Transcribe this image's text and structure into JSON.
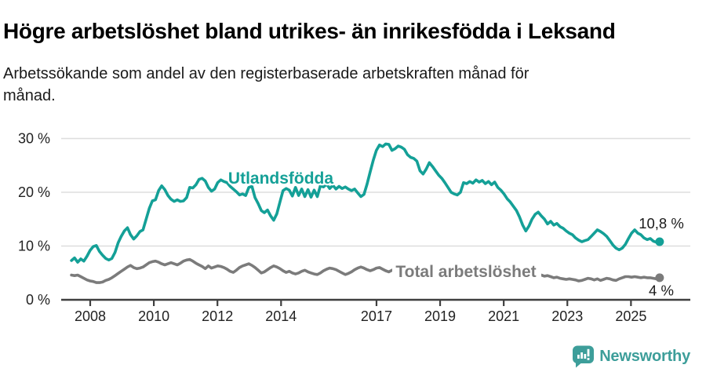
{
  "header": {
    "title": "Högre arbetslöshet bland utrikes- än inrikesfödda i Leksand",
    "subtitle_lines": [
      "Arbetssökande som andel av den registerbaserade arbetskraften månad för",
      "månad."
    ]
  },
  "footer": {
    "brand": "Newsworthy",
    "brand_color": "#3d9e9a",
    "logo_icon": "speech-bubble-bar-chart-icon"
  },
  "colors": {
    "series_foreign_born": "#14a097",
    "series_total": "#7b7b7b",
    "gridline": "#dddddd",
    "axis": "#3f3f3f",
    "tick_text": "#222222",
    "annotation_text": "#1a1a1a"
  },
  "chart_data": {
    "type": "line",
    "title": "Högre arbetslöshet bland utrikes- än inrikesfödda i Leksand",
    "subtitle": "Arbetssökande som andel av den registerbaserade arbetskraften månad för månad.",
    "unit": "%",
    "grid": true,
    "x_axis": {
      "start_year": 2007.41,
      "end_year": 2025.9,
      "tick_years": [
        2008,
        2010,
        2012,
        2014,
        2017,
        2019,
        2021,
        2023,
        2025
      ],
      "tick_labels": [
        "2008",
        "2010",
        "2012",
        "2014",
        "2017",
        "2019",
        "2021",
        "2023",
        "2025"
      ]
    },
    "y_axis": {
      "min": 0,
      "max": 30,
      "ticks": [
        {
          "value": 0,
          "label": "0 %"
        },
        {
          "value": 10,
          "label": "10 %"
        },
        {
          "value": 20,
          "label": "20 %"
        },
        {
          "value": 30,
          "label": "30 %"
        }
      ]
    },
    "series": [
      {
        "name": "Total arbetslöshet",
        "color": "#7b7b7b",
        "end_value": 4,
        "end_label": "4 %",
        "values": [
          4.6,
          4.5,
          4.6,
          4.3,
          4.0,
          3.7,
          3.5,
          3.4,
          3.2,
          3.2,
          3.3,
          3.6,
          3.8,
          4.1,
          4.5,
          4.9,
          5.3,
          5.7,
          6.1,
          6.4,
          6.0,
          5.8,
          5.9,
          6.1,
          6.5,
          6.9,
          7.1,
          7.2,
          7.0,
          6.7,
          6.5,
          6.7,
          6.9,
          6.7,
          6.5,
          6.8,
          7.2,
          7.4,
          7.5,
          7.2,
          6.8,
          6.5,
          6.2,
          5.8,
          6.3,
          5.9,
          6.1,
          6.3,
          6.2,
          6.0,
          5.7,
          5.3,
          5.1,
          5.5,
          6.0,
          6.3,
          6.5,
          6.7,
          6.4,
          6.0,
          5.5,
          5.0,
          5.2,
          5.6,
          6.0,
          6.3,
          6.1,
          5.8,
          5.4,
          5.1,
          5.3,
          5.0,
          4.8,
          5.0,
          5.3,
          5.5,
          5.2,
          5.0,
          4.8,
          4.7,
          5.0,
          5.4,
          5.7,
          5.9,
          5.8,
          5.6,
          5.3,
          5.0,
          4.7,
          4.9,
          5.2,
          5.6,
          5.9,
          6.1,
          5.9,
          5.6,
          5.4,
          5.6,
          5.9,
          6.0,
          5.7,
          5.4,
          5.2,
          5.5,
          5.8,
          6.0,
          5.8,
          5.5,
          5.3,
          5.5,
          5.8,
          5.6,
          5.3,
          5.0,
          5.2,
          5.5,
          5.7,
          5.4,
          5.1,
          4.9,
          5.1,
          5.3,
          5.5,
          5.2,
          5.0,
          5.3,
          5.6,
          5.8,
          5.5,
          5.2,
          5.0,
          5.2,
          5.5,
          5.3,
          5.0,
          4.8,
          5.0,
          5.2,
          5.4,
          5.1,
          4.9,
          4.7,
          4.9,
          5.1,
          4.8,
          4.6,
          4.4,
          4.6,
          4.8,
          4.6,
          4.5,
          4.6,
          4.4,
          4.5,
          4.3,
          4.1,
          4.2,
          4.0,
          3.9,
          3.8,
          3.9,
          3.8,
          3.7,
          3.5,
          3.6,
          3.8,
          4.0,
          3.9,
          3.7,
          3.9,
          3.6,
          3.8,
          4.0,
          3.9,
          3.7,
          3.6,
          3.9,
          4.1,
          4.3,
          4.3,
          4.2,
          4.3,
          4.2,
          4.1,
          4.2,
          4.1,
          4.1,
          4.0,
          3.9,
          4.1
        ]
      },
      {
        "name": "Utlandsfödda",
        "color": "#14a097",
        "end_value": 10.8,
        "end_label": "10,8 %",
        "values": [
          7.3,
          7.8,
          7.0,
          7.6,
          7.2,
          8.1,
          9.2,
          9.9,
          10.1,
          9.0,
          8.3,
          7.7,
          7.4,
          7.7,
          8.8,
          10.6,
          11.8,
          12.8,
          13.4,
          12.1,
          11.3,
          11.9,
          12.7,
          13.0,
          15.0,
          17.0,
          18.4,
          18.6,
          20.3,
          21.2,
          20.5,
          19.4,
          18.7,
          18.3,
          18.6,
          18.3,
          18.4,
          19.0,
          20.9,
          20.8,
          21.4,
          22.4,
          22.6,
          22.1,
          20.9,
          20.2,
          20.6,
          21.8,
          22.3,
          22.0,
          21.8,
          21.1,
          20.6,
          20.1,
          19.5,
          19.7,
          19.4,
          20.9,
          21.1,
          19.0,
          17.9,
          16.6,
          16.2,
          16.7,
          15.6,
          14.8,
          16.0,
          18.2,
          20.3,
          20.7,
          20.4,
          19.3,
          20.9,
          19.4,
          20.6,
          19.2,
          20.5,
          19.1,
          20.4,
          19.2,
          21.2,
          21.0,
          21.5,
          20.7,
          21.3,
          20.6,
          21.1,
          20.7,
          21.0,
          20.6,
          20.3,
          20.6,
          19.9,
          19.2,
          19.6,
          21.5,
          23.8,
          26.0,
          27.8,
          28.8,
          28.5,
          29.0,
          28.9,
          27.8,
          28.1,
          28.6,
          28.4,
          28.0,
          27.0,
          26.5,
          26.3,
          25.8,
          24.0,
          23.4,
          24.3,
          25.5,
          24.8,
          24.0,
          23.2,
          22.6,
          21.8,
          20.9,
          20.0,
          19.7,
          19.5,
          20.0,
          21.8,
          21.6,
          22.0,
          21.7,
          22.3,
          21.9,
          22.2,
          21.6,
          22.0,
          21.4,
          21.9,
          20.9,
          20.4,
          19.7,
          18.8,
          18.2,
          17.4,
          16.6,
          15.4,
          13.9,
          12.8,
          13.7,
          15.0,
          15.9,
          16.3,
          15.6,
          15.0,
          14.1,
          14.6,
          13.9,
          14.2,
          13.6,
          13.3,
          12.8,
          12.4,
          12.1,
          11.5,
          11.1,
          10.8,
          11.0,
          11.2,
          11.8,
          12.4,
          13.0,
          12.7,
          12.3,
          11.8,
          11.0,
          10.2,
          9.6,
          9.3,
          9.6,
          10.3,
          11.4,
          12.4,
          13.0,
          12.4,
          12.1,
          11.5,
          11.2,
          11.4,
          10.9,
          10.7,
          10.8
        ]
      }
    ]
  }
}
